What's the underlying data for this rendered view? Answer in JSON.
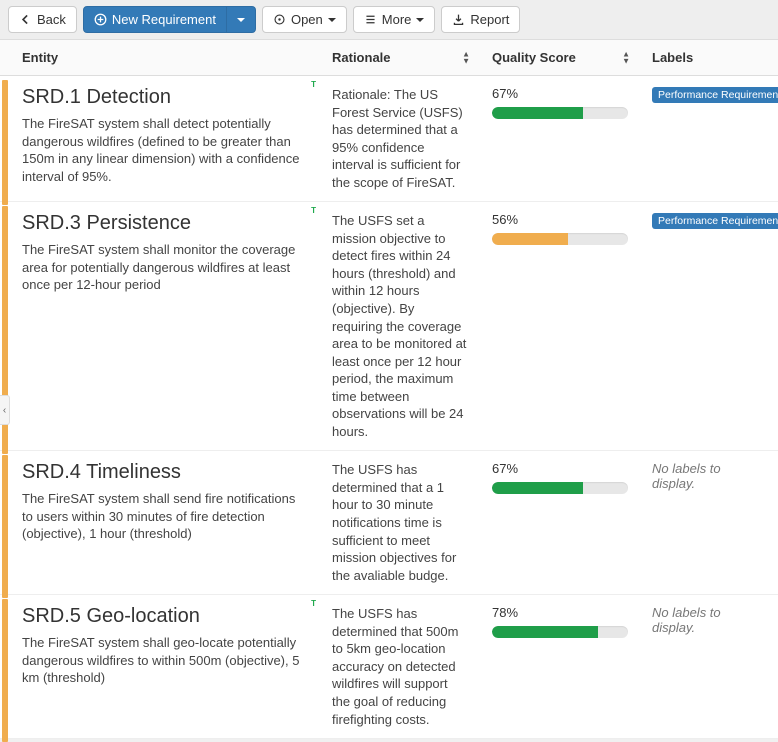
{
  "toolbar": {
    "back_label": "Back",
    "new_requirement_label": "New Requirement",
    "open_label": "Open",
    "more_label": "More",
    "report_label": "Report"
  },
  "columns": {
    "entity": "Entity",
    "rationale": "Rationale",
    "quality": "Quality Score",
    "labels": "Labels"
  },
  "colors": {
    "stripe": "#f0ad4e",
    "progress_green": "#1f9e49",
    "progress_orange": "#f0ad4e",
    "badge_bg": "#337ab7"
  },
  "no_labels_text": "No labels to display.",
  "t_marker": "T",
  "rows": [
    {
      "title": "SRD.1 Detection",
      "desc": "The FireSAT system shall detect potentially dangerous wildfires (defined to be greater than 150m in any linear dimension) with a confidence interval of 95%.",
      "rationale": "Rationale: The US Forest Service (USFS) has determined that a 95% confidence interval is sufficient for the scope of FireSAT.",
      "quality_pct": "67%",
      "quality_val": 67,
      "quality_color": "#1f9e49",
      "label": "Performance Requirement",
      "t": true
    },
    {
      "title": "SRD.3 Persistence",
      "desc": "The FireSAT system shall monitor the coverage area for potentially dangerous wildfires at least once per 12-hour period",
      "rationale": "The USFS set a mission objective to detect fires within 24 hours (threshold) and within 12 hours (objective). By requiring the coverage area to be monitored at least once per 12 hour period, the maximum time between observations will be 24 hours.",
      "quality_pct": "56%",
      "quality_val": 56,
      "quality_color": "#f0ad4e",
      "label": "Performance Requirement",
      "t": true
    },
    {
      "title": "SRD.4 Timeliness",
      "desc": "The FireSAT system shall send fire notifications to users within 30 minutes of fire detection (objective), 1 hour (threshold)",
      "rationale": "The USFS has determined that a 1 hour to 30 minute notifications time is sufficient to meet mission objectives for the avaliable budge.",
      "quality_pct": "67%",
      "quality_val": 67,
      "quality_color": "#1f9e49",
      "label": null,
      "t": false
    },
    {
      "title": "SRD.5 Geo-location",
      "desc": "The FireSAT system shall geo-locate potentially dangerous wildfires to within 500m (objective), 5 km (threshold)",
      "rationale": "The USFS has determined that 500m to 5km geo-location accuracy on detected wildfires will support the goal of reducing firefighting costs.",
      "quality_pct": "78%",
      "quality_val": 78,
      "quality_color": "#1f9e49",
      "label": null,
      "t": true
    }
  ]
}
